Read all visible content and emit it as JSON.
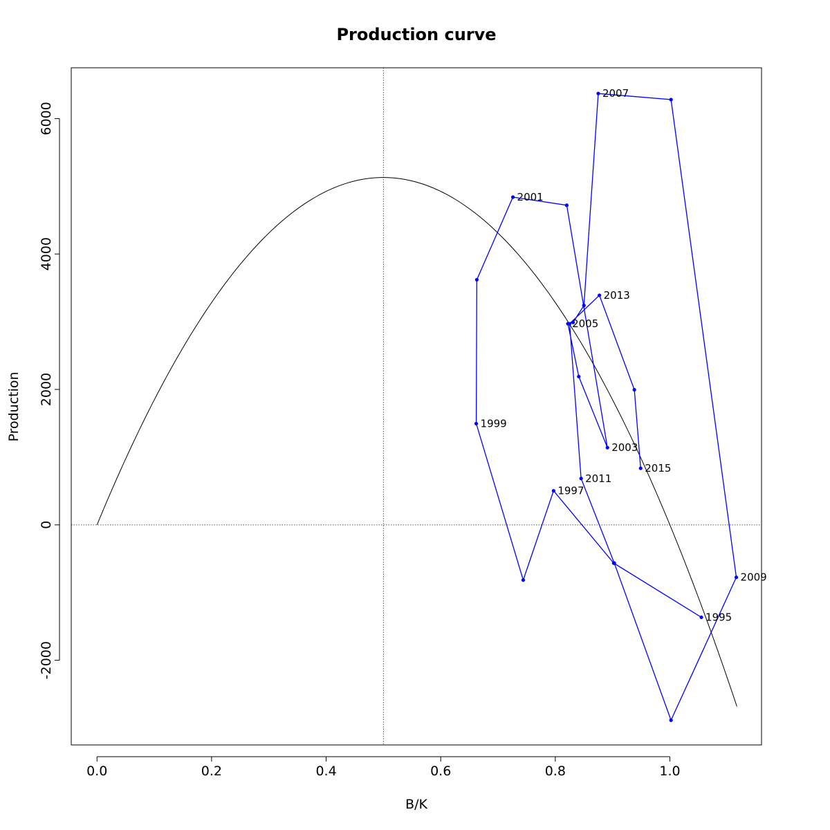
{
  "chart_data": {
    "type": "line",
    "title": "Production curve",
    "xlabel": "B/K",
    "ylabel": "Production",
    "xlim": [
      -0.045,
      1.16
    ],
    "ylim": [
      -3250,
      6750
    ],
    "x_ticks": [
      0.0,
      0.2,
      0.4,
      0.6,
      0.8,
      1.0
    ],
    "x_tick_labels": [
      "0.0",
      "0.2",
      "0.4",
      "0.6",
      "0.8",
      "1.0"
    ],
    "y_ticks": [
      -2000,
      0,
      2000,
      4000,
      6000
    ],
    "y_tick_labels": [
      "-2000",
      "0",
      "2000",
      "4000",
      "6000"
    ],
    "grid": false,
    "reference_lines": {
      "vertical_x": 0.5,
      "horizontal_y": 0
    },
    "colors": {
      "observed": "#0000ff",
      "curve": "#000000",
      "reference": "#555555"
    },
    "curve": {
      "equation": "P = 4 * MSY * (B/K) * (1 - B/K)",
      "msy": 5130,
      "x_range": [
        0.0,
        1.117
      ]
    },
    "series": [
      {
        "x": [
          1.055,
          0.902,
          0.797,
          0.744,
          0.662,
          0.663,
          0.726,
          0.82,
          0.891,
          0.841,
          0.822,
          0.831,
          0.85,
          0.875,
          1.002,
          1.116,
          1.002,
          0.903,
          0.845,
          0.825,
          0.877,
          0.938,
          0.949
        ],
        "y": [
          -1365,
          -565,
          503,
          -815,
          1495,
          3620,
          4840,
          4720,
          1140,
          2190,
          2970,
          2990,
          3240,
          6370,
          6280,
          -775,
          -2885,
          -565,
          685,
          2970,
          3390,
          1995,
          835
        ],
        "labels": [
          "1995",
          "",
          "1997",
          "",
          "1999",
          "",
          "2001",
          "",
          "2003",
          "",
          "2005",
          "",
          "",
          "2007",
          "",
          "2009",
          "",
          "",
          "2011",
          "",
          "2013",
          "",
          "2015"
        ]
      }
    ]
  }
}
